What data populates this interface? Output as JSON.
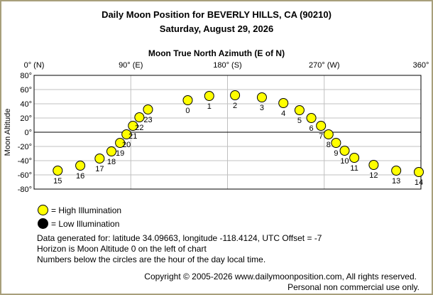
{
  "title": "Daily Moon Position for BEVERLY HILLS, CA (90210)",
  "subtitle": "Saturday, August 29, 2026",
  "colors": {
    "frame": "#a89f7b",
    "high": "#ffff00",
    "low": "#000000",
    "grid": "#c0c0c0",
    "horizon": "#000000"
  },
  "chart_data": {
    "type": "scatter",
    "title": "Moon True North Azimuth (E of N)",
    "ylabel": "Moon Altitude",
    "xlim": [
      0,
      360
    ],
    "ylim": [
      -80,
      80
    ],
    "x_ticks": [
      {
        "value": 0,
        "label": "0° (N)"
      },
      {
        "value": 90,
        "label": "90° (E)"
      },
      {
        "value": 180,
        "label": "180° (S)"
      },
      {
        "value": 270,
        "label": "270° (W)"
      },
      {
        "value": 360,
        "label": "360°"
      }
    ],
    "y_ticks": [
      {
        "value": 80,
        "label": "80°"
      },
      {
        "value": 60,
        "label": "60°"
      },
      {
        "value": 40,
        "label": "40°"
      },
      {
        "value": 20,
        "label": "20°"
      },
      {
        "value": 0,
        "label": "0°"
      },
      {
        "value": -20,
        "label": "-20°"
      },
      {
        "value": -40,
        "label": "-40°"
      },
      {
        "value": -60,
        "label": "-60°"
      },
      {
        "value": -80,
        "label": "-80°"
      }
    ],
    "grid": true,
    "horizon_altitude": 0,
    "points": [
      {
        "hour": "15",
        "azimuth": 22,
        "altitude": -54,
        "illumination": "high"
      },
      {
        "hour": "16",
        "azimuth": 43,
        "altitude": -47,
        "illumination": "high"
      },
      {
        "hour": "17",
        "azimuth": 61,
        "altitude": -37,
        "illumination": "high"
      },
      {
        "hour": "18",
        "azimuth": 72,
        "altitude": -27,
        "illumination": "high"
      },
      {
        "hour": "19",
        "azimuth": 80,
        "altitude": -15,
        "illumination": "high"
      },
      {
        "hour": "20",
        "azimuth": 86,
        "altitude": -3,
        "illumination": "high"
      },
      {
        "hour": "21",
        "azimuth": 92,
        "altitude": 9,
        "illumination": "high"
      },
      {
        "hour": "22",
        "azimuth": 98,
        "altitude": 21,
        "illumination": "high"
      },
      {
        "hour": "23",
        "azimuth": 106,
        "altitude": 32,
        "illumination": "high"
      },
      {
        "hour": "0",
        "azimuth": 143,
        "altitude": 45,
        "illumination": "high"
      },
      {
        "hour": "1",
        "azimuth": 163,
        "altitude": 51,
        "illumination": "high"
      },
      {
        "hour": "2",
        "azimuth": 187,
        "altitude": 52,
        "illumination": "high"
      },
      {
        "hour": "3",
        "azimuth": 212,
        "altitude": 49,
        "illumination": "high"
      },
      {
        "hour": "4",
        "azimuth": 232,
        "altitude": 41,
        "illumination": "high"
      },
      {
        "hour": "5",
        "azimuth": 247,
        "altitude": 31,
        "illumination": "high"
      },
      {
        "hour": "6",
        "azimuth": 258,
        "altitude": 20,
        "illumination": "high"
      },
      {
        "hour": "7",
        "azimuth": 267,
        "altitude": 9,
        "illumination": "high"
      },
      {
        "hour": "8",
        "azimuth": 274,
        "altitude": -3,
        "illumination": "high"
      },
      {
        "hour": "9",
        "azimuth": 281,
        "altitude": -15,
        "illumination": "high"
      },
      {
        "hour": "10",
        "azimuth": 289,
        "altitude": -26,
        "illumination": "high"
      },
      {
        "hour": "11",
        "azimuth": 298,
        "altitude": -36,
        "illumination": "high"
      },
      {
        "hour": "12",
        "azimuth": 316,
        "altitude": -46,
        "illumination": "high"
      },
      {
        "hour": "13",
        "azimuth": 337,
        "altitude": -54,
        "illumination": "high"
      },
      {
        "hour": "14",
        "azimuth": 358,
        "altitude": -56,
        "illumination": "high"
      }
    ]
  },
  "legend": {
    "high_label": "= High Illumination",
    "low_label": "= Low Illumination"
  },
  "info": {
    "line1": "Data generated for: latitude 34.09663, longitude -118.4124, UTC Offset = -7",
    "line2": "Horizon is Moon Altitude 0 on the left of chart",
    "line3": "Numbers below the circles are the hour of the day local time."
  },
  "footer": {
    "copyright": "Copyright © 2005-2026 www.dailymoonposition.com, All rights reserved.",
    "notice": "Personal non commercial use only."
  }
}
